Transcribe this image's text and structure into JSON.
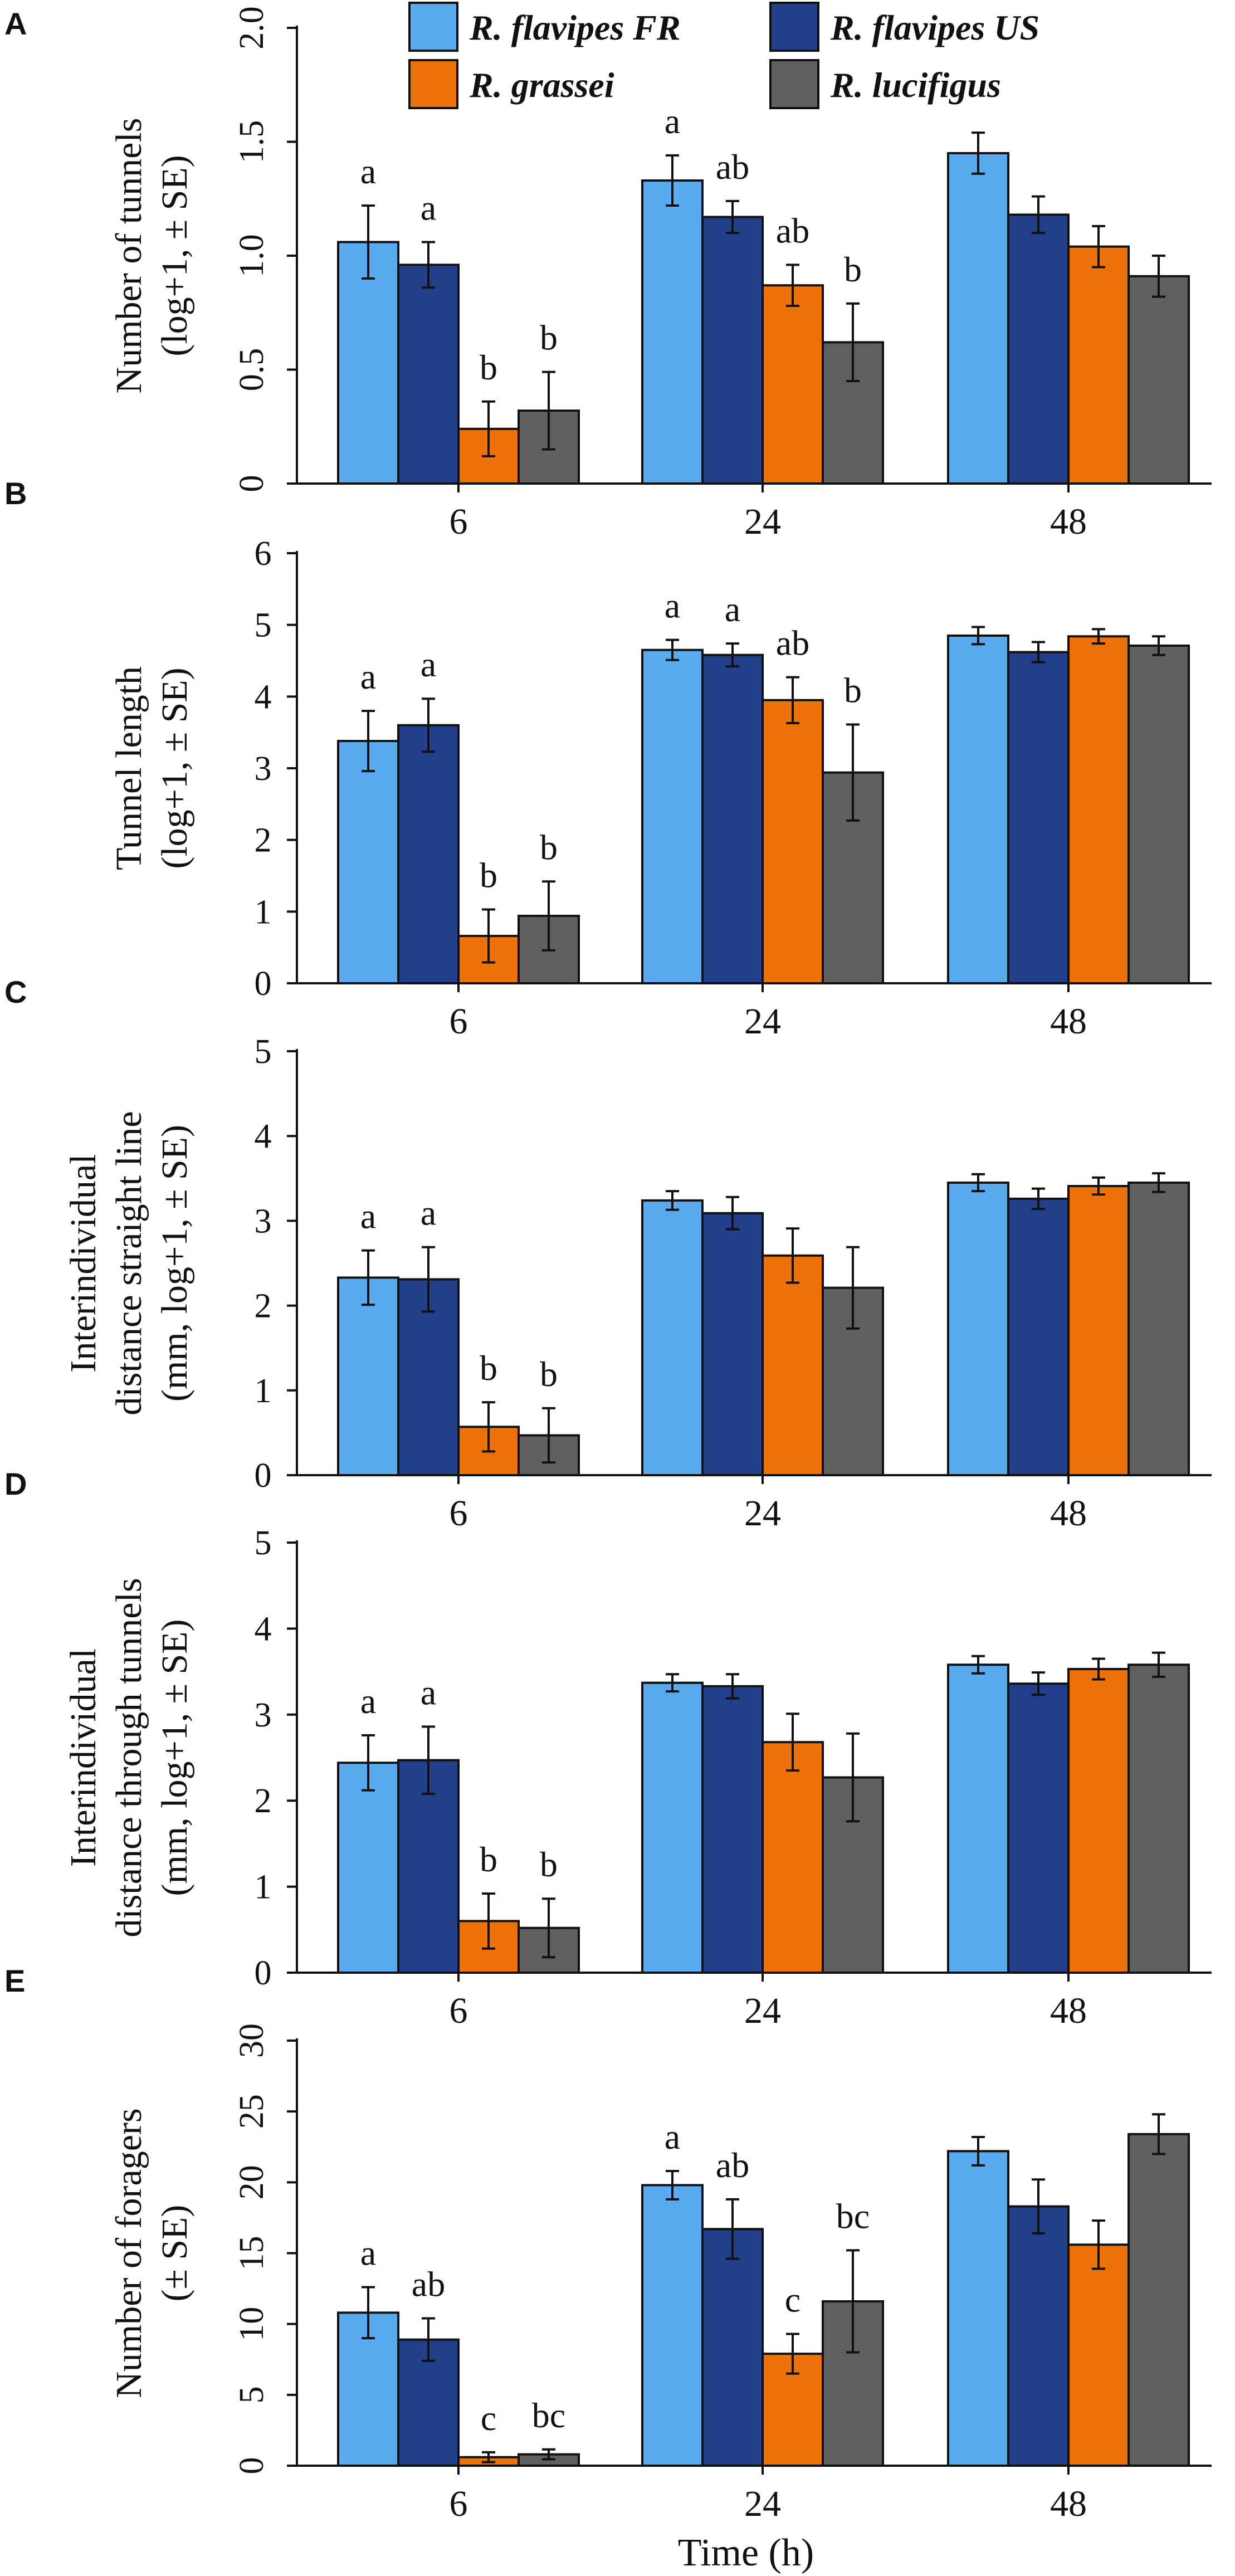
{
  "legend": {
    "items": [
      {
        "name": "R. flavipes FR",
        "color": "#5aaaf0"
      },
      {
        "name": "R. flavipes US",
        "color": "#233f8b"
      },
      {
        "name": "R. grassei",
        "color": "#ee720a"
      },
      {
        "name": "R. lucifigus",
        "color": "#606060"
      }
    ]
  },
  "x_axis_title": "Time (h)",
  "chart_data": [
    {
      "type": "bar",
      "panel": "A",
      "ylabel": [
        "Number of tunnels",
        "(log+1, ± SE)"
      ],
      "ylim": [
        0,
        2.0
      ],
      "yticks": [
        "0",
        "0.5",
        "1.0",
        "1.5",
        "2.0"
      ],
      "tick_values": [
        0,
        0.5,
        1.0,
        1.5,
        2.0
      ],
      "tick_rotated": true,
      "categories": [
        "6",
        "24",
        "48"
      ],
      "series": [
        {
          "name": "R. flavipes FR",
          "values": [
            1.06,
            1.33,
            1.45
          ],
          "errors": [
            0.16,
            0.11,
            0.09
          ],
          "letters": [
            "a",
            "a",
            ""
          ]
        },
        {
          "name": "R. flavipes US",
          "values": [
            0.96,
            1.17,
            1.18
          ],
          "errors": [
            0.1,
            0.07,
            0.08
          ],
          "letters": [
            "a",
            "ab",
            ""
          ]
        },
        {
          "name": "R. grassei",
          "values": [
            0.24,
            0.87,
            1.04
          ],
          "errors": [
            0.12,
            0.09,
            0.09
          ],
          "letters": [
            "b",
            "ab",
            ""
          ]
        },
        {
          "name": "R. lucifigus",
          "values": [
            0.32,
            0.62,
            0.91
          ],
          "errors": [
            0.17,
            0.17,
            0.09
          ],
          "letters": [
            "b",
            "b",
            ""
          ]
        }
      ]
    },
    {
      "type": "bar",
      "panel": "B",
      "ylabel": [
        "Tunnel length",
        "(log+1, ± SE)"
      ],
      "ylim": [
        0,
        6
      ],
      "yticks": [
        "0",
        "1",
        "2",
        "3",
        "4",
        "5",
        "6"
      ],
      "tick_values": [
        0,
        1,
        2,
        3,
        4,
        5,
        6
      ],
      "tick_rotated": false,
      "categories": [
        "6",
        "24",
        "48"
      ],
      "series": [
        {
          "name": "R. flavipes FR",
          "values": [
            3.38,
            4.65,
            4.85
          ],
          "errors": [
            0.42,
            0.14,
            0.12
          ],
          "letters": [
            "a",
            "a",
            ""
          ]
        },
        {
          "name": "R. flavipes US",
          "values": [
            3.6,
            4.58,
            4.62
          ],
          "errors": [
            0.37,
            0.16,
            0.14
          ],
          "letters": [
            "a",
            "a",
            ""
          ]
        },
        {
          "name": "R. grassei",
          "values": [
            0.66,
            3.95,
            4.84
          ],
          "errors": [
            0.37,
            0.32,
            0.1
          ],
          "letters": [
            "b",
            "ab",
            ""
          ]
        },
        {
          "name": "R. lucifigus",
          "values": [
            0.94,
            2.94,
            4.71
          ],
          "errors": [
            0.48,
            0.67,
            0.13
          ],
          "letters": [
            "b",
            "b",
            ""
          ]
        }
      ]
    },
    {
      "type": "bar",
      "panel": "C",
      "ylabel": [
        "Interindividual",
        "distance straight line",
        "(mm, log+1, ± SE)"
      ],
      "ylim": [
        0,
        5
      ],
      "yticks": [
        "0",
        "1",
        "2",
        "3",
        "4",
        "5"
      ],
      "tick_values": [
        0,
        1,
        2,
        3,
        4,
        5
      ],
      "tick_rotated": false,
      "categories": [
        "6",
        "24",
        "48"
      ],
      "series": [
        {
          "name": "R. flavipes FR",
          "values": [
            2.33,
            3.24,
            3.45
          ],
          "errors": [
            0.32,
            0.11,
            0.1
          ],
          "letters": [
            "a",
            "",
            ""
          ]
        },
        {
          "name": "R. flavipes US",
          "values": [
            2.31,
            3.09,
            3.26
          ],
          "errors": [
            0.38,
            0.19,
            0.12
          ],
          "letters": [
            "a",
            "",
            ""
          ]
        },
        {
          "name": "R. grassei",
          "values": [
            0.57,
            2.59,
            3.41
          ],
          "errors": [
            0.29,
            0.32,
            0.1
          ],
          "letters": [
            "b",
            "",
            ""
          ]
        },
        {
          "name": "R. lucifigus",
          "values": [
            0.47,
            2.21,
            3.45
          ],
          "errors": [
            0.32,
            0.48,
            0.11
          ],
          "letters": [
            "b",
            "",
            ""
          ]
        }
      ]
    },
    {
      "type": "bar",
      "panel": "D",
      "ylabel": [
        "Interindividual",
        "distance through tunnels",
        "(mm, log+1, ± SE)"
      ],
      "ylim": [
        0,
        5
      ],
      "yticks": [
        "0",
        "1",
        "2",
        "3",
        "4",
        "5"
      ],
      "tick_values": [
        0,
        1,
        2,
        3,
        4,
        5
      ],
      "tick_rotated": false,
      "categories": [
        "6",
        "24",
        "48"
      ],
      "series": [
        {
          "name": "R. flavipes FR",
          "values": [
            2.44,
            3.37,
            3.58
          ],
          "errors": [
            0.32,
            0.1,
            0.1
          ],
          "letters": [
            "a",
            "",
            ""
          ]
        },
        {
          "name": "R. flavipes US",
          "values": [
            2.47,
            3.33,
            3.36
          ],
          "errors": [
            0.39,
            0.14,
            0.13
          ],
          "letters": [
            "a",
            "",
            ""
          ]
        },
        {
          "name": "R. grassei",
          "values": [
            0.6,
            2.68,
            3.53
          ],
          "errors": [
            0.32,
            0.33,
            0.12
          ],
          "letters": [
            "b",
            "",
            ""
          ]
        },
        {
          "name": "R. lucifigus",
          "values": [
            0.52,
            2.27,
            3.58
          ],
          "errors": [
            0.34,
            0.51,
            0.14
          ],
          "letters": [
            "b",
            "",
            ""
          ]
        }
      ]
    },
    {
      "type": "bar",
      "panel": "E",
      "ylabel": [
        "Number of foragers",
        "(± SE)"
      ],
      "ylim": [
        0,
        30
      ],
      "yticks": [
        "0",
        "5",
        "10",
        "15",
        "20",
        "25",
        "30"
      ],
      "tick_values": [
        0,
        5,
        10,
        15,
        20,
        25,
        30
      ],
      "tick_rotated": true,
      "categories": [
        "6",
        "24",
        "48"
      ],
      "series": [
        {
          "name": "R. flavipes FR",
          "values": [
            10.8,
            19.8,
            22.2
          ],
          "errors": [
            1.8,
            1.0,
            1.0
          ],
          "letters": [
            "a",
            "a",
            ""
          ]
        },
        {
          "name": "R. flavipes US",
          "values": [
            8.9,
            16.7,
            18.3
          ],
          "errors": [
            1.5,
            2.1,
            1.9
          ],
          "letters": [
            "ab",
            "ab",
            ""
          ]
        },
        {
          "name": "R. grassei",
          "values": [
            0.6,
            7.9,
            15.6
          ],
          "errors": [
            0.35,
            1.4,
            1.7
          ],
          "letters": [
            "c",
            "c",
            ""
          ]
        },
        {
          "name": "R. lucifigus",
          "values": [
            0.8,
            11.6,
            23.4
          ],
          "errors": [
            0.35,
            3.6,
            1.4
          ],
          "letters": [
            "bc",
            "bc",
            ""
          ]
        }
      ]
    }
  ]
}
